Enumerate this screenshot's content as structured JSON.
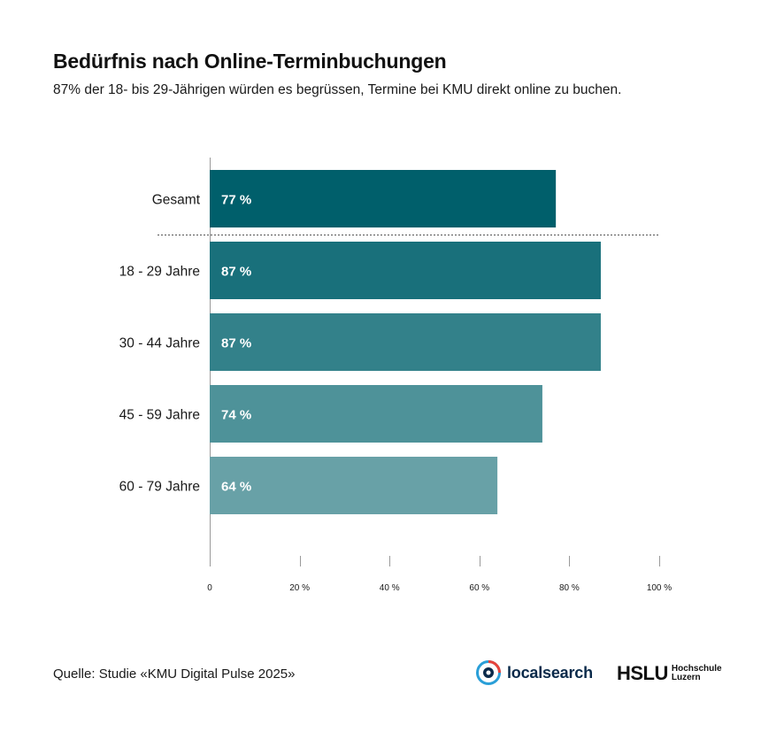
{
  "chart_data": {
    "type": "bar",
    "orientation": "horizontal",
    "title": "Bedürfnis nach Online-Terminbuchungen",
    "subtitle": "87% der 18- bis 29-Jährigen würden es begrüssen, Termine bei KMU direkt online zu buchen.",
    "categories": [
      "Gesamt",
      "18 - 29 Jahre",
      "30 - 44 Jahre",
      "45 - 59 Jahre",
      "60 - 79 Jahre"
    ],
    "values": [
      77,
      87,
      87,
      74,
      64
    ],
    "value_labels": [
      "77 %",
      "87 %",
      "87 %",
      "74 %",
      "64 %"
    ],
    "bar_colors": [
      "#005f6b",
      "#19707b",
      "#33818a",
      "#4e9299",
      "#68a1a7"
    ],
    "xlim": [
      0,
      100
    ],
    "x_ticks": [
      0,
      20,
      40,
      60,
      80,
      100
    ],
    "x_tick_labels": [
      "0",
      "20 %",
      "40 %",
      "60 %",
      "80 %",
      "100 %"
    ],
    "separator_after_category": "Gesamt",
    "grid": false,
    "legend": "none"
  },
  "footer": {
    "source": "Quelle: Studie «KMU Digital Pulse 2025»"
  },
  "logos": {
    "localsearch": {
      "icon": "localsearch-logo-icon",
      "text": "localsearch"
    },
    "hslu": {
      "text": "HSLU",
      "line1": "Hochschule",
      "line2": "Luzern"
    }
  }
}
